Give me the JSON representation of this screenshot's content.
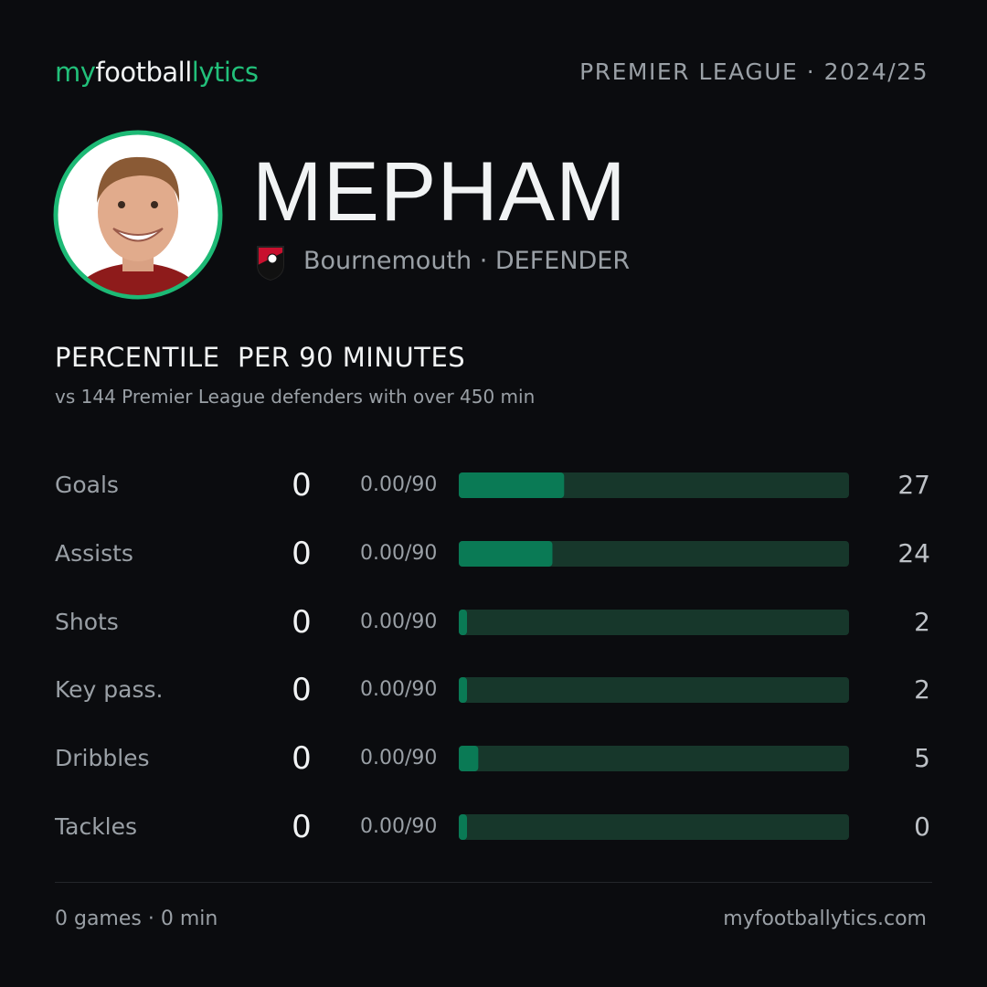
{
  "header": {
    "logo": [
      "my",
      "football",
      "lytics"
    ],
    "competition": "PREMIER LEAGUE · 2024/25"
  },
  "player": {
    "name": "MEPHAM",
    "meta": "Bournemouth · DEFENDER"
  },
  "section": {
    "title": "PERCENTILE  PER 90 MINUTES",
    "subtitle": "vs 144 Premier League defenders with over 450 min"
  },
  "stats": {
    "xlim": [
      0,
      100
    ],
    "rows": [
      {
        "label": "Goals",
        "total": 0,
        "rate": "0.00/90",
        "percentile": 27
      },
      {
        "label": "Assists",
        "total": 0,
        "rate": "0.00/90",
        "percentile": 24
      },
      {
        "label": "Shots",
        "total": 0,
        "rate": "0.00/90",
        "percentile": 2
      },
      {
        "label": "Key pass.",
        "total": 0,
        "rate": "0.00/90",
        "percentile": 2
      },
      {
        "label": "Dribbles",
        "total": 0,
        "rate": "0.00/90",
        "percentile": 5
      },
      {
        "label": "Tackles",
        "total": 0,
        "rate": "0.00/90",
        "percentile": 0
      }
    ]
  },
  "footer": {
    "summary": "0 games · 0 min",
    "site": "myfootballytics.com"
  }
}
